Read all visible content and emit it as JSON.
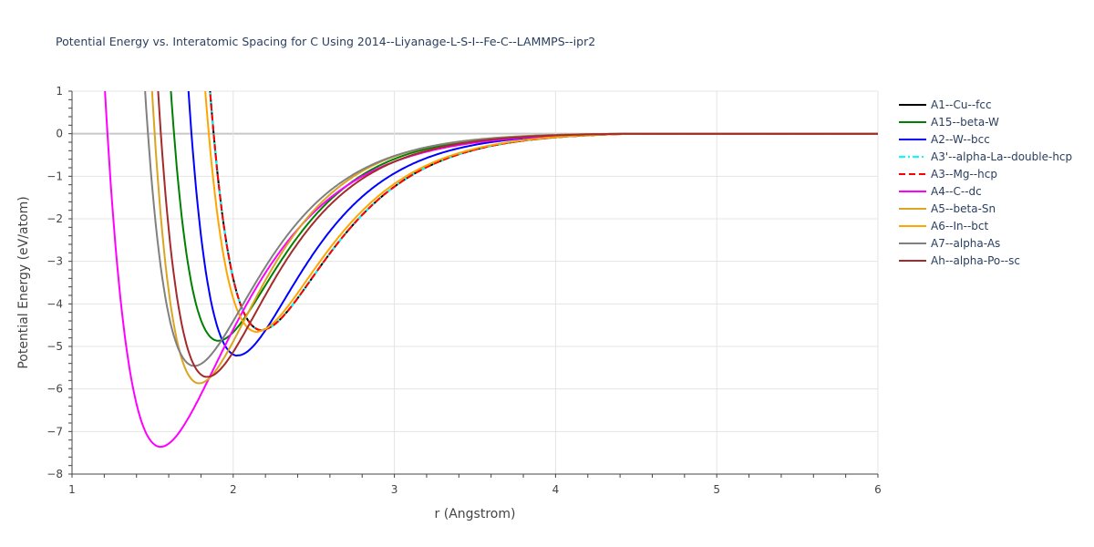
{
  "chart_data": {
    "type": "line",
    "title": "Potential Energy vs. Interatomic Spacing for C Using 2014--Liyanage-L-S-I--Fe-C--LAMMPS--ipr2",
    "xlabel": "r (Angstrom)",
    "ylabel": "Potential Energy (eV/atom)",
    "xlim": [
      1,
      6
    ],
    "ylim": [
      -8,
      1
    ],
    "xticks": [
      1,
      2,
      3,
      4,
      5,
      6
    ],
    "yticks": [
      1,
      0,
      -1,
      -2,
      -3,
      -4,
      -5,
      -6,
      -7,
      -8
    ],
    "xtick_labels": [
      "1",
      "2",
      "3",
      "4",
      "5",
      "6"
    ],
    "ytick_labels": [
      "1",
      "0",
      "−1",
      "−2",
      "−3",
      "−4",
      "−5",
      "−6",
      "−7",
      "−8"
    ],
    "grid": true,
    "legend_position": "top-right",
    "cutoff": 4.5,
    "series": [
      {
        "name": "A1--Cu--fcc",
        "color": "#000000",
        "dash": "solid",
        "r0": 2.18,
        "e0": -4.62,
        "a": 2.3
      },
      {
        "name": "A15--beta-W",
        "color": "#008000",
        "dash": "solid",
        "r0": 1.91,
        "e0": -4.87,
        "a": 2.5
      },
      {
        "name": "A2--W--bcc",
        "color": "#0000ff",
        "dash": "solid",
        "r0": 2.03,
        "e0": -5.22,
        "a": 2.4
      },
      {
        "name": "A3'--alpha-La--double-hcp",
        "color": "#00ffff",
        "dash": "dashdot",
        "r0": 2.18,
        "e0": -4.62,
        "a": 2.3
      },
      {
        "name": "A3--Mg--hcp",
        "color": "#ff0000",
        "dash": "dash",
        "r0": 2.18,
        "e0": -4.62,
        "a": 2.3
      },
      {
        "name": "A4--C--dc",
        "color": "#ff00ff",
        "dash": "solid",
        "r0": 1.55,
        "e0": -7.36,
        "a": 2.1
      },
      {
        "name": "A5--beta-Sn",
        "color": "#daa520",
        "dash": "solid",
        "r0": 1.79,
        "e0": -5.87,
        "a": 2.5
      },
      {
        "name": "A6--In--bct",
        "color": "#ffa500",
        "dash": "solid",
        "r0": 2.15,
        "e0": -4.66,
        "a": 2.3
      },
      {
        "name": "A7--alpha-As",
        "color": "#808080",
        "dash": "solid",
        "r0": 1.76,
        "e0": -5.46,
        "a": 2.4
      },
      {
        "name": "Ah--alpha-Po--sc",
        "color": "#a52a2a",
        "dash": "solid",
        "r0": 1.84,
        "e0": -5.72,
        "a": 2.4
      }
    ]
  }
}
